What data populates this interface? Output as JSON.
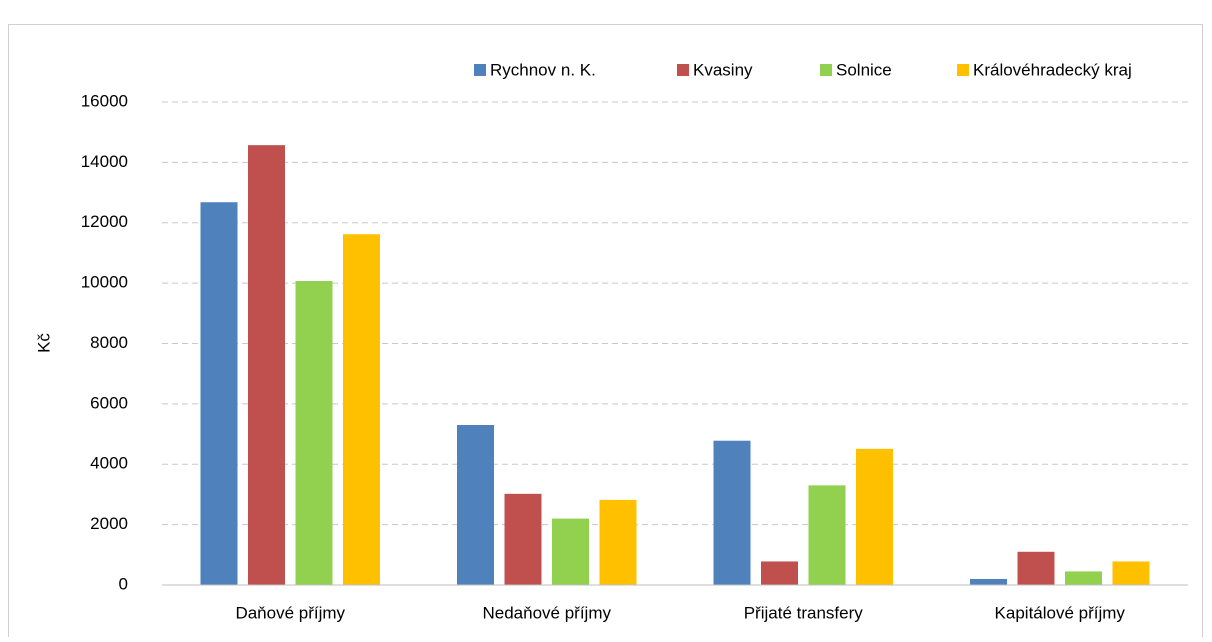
{
  "chart_data": {
    "type": "bar",
    "categories": [
      "Daňové příjmy",
      "Nedaňové příjmy",
      "Přijaté transfery",
      "Kapitálové příjmy"
    ],
    "series": [
      {
        "name": "Rychnov n. K.",
        "color": "#4f81bd",
        "values": [
          12680,
          5300,
          4780,
          200
        ]
      },
      {
        "name": "Kvasiny",
        "color": "#c0504d",
        "values": [
          14570,
          3020,
          780,
          1100
        ]
      },
      {
        "name": "Solnice",
        "color": "#92d050",
        "values": [
          10070,
          2200,
          3300,
          450
        ]
      },
      {
        "name": "Královéhradecký kraj",
        "color": "#ffc000",
        "values": [
          11620,
          2820,
          4510,
          780
        ]
      }
    ],
    "ylabel": "Kč",
    "ylim": [
      0,
      16000
    ],
    "yticks": [
      0,
      2000,
      4000,
      6000,
      8000,
      10000,
      12000,
      14000,
      16000
    ],
    "grid": true,
    "legend": "top"
  }
}
